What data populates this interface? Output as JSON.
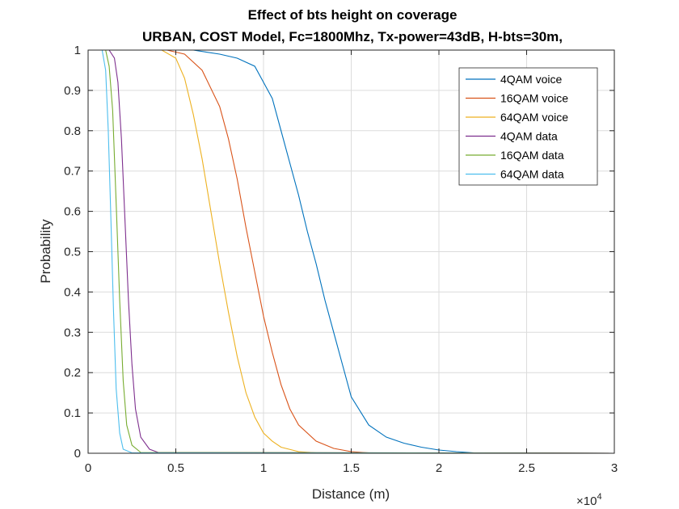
{
  "chart_data": {
    "type": "line",
    "title": "Effect of bts height on coverage",
    "subtitle": "URBAN, COST Model, Fc=1800Mhz, Tx-power=43dB, H-bts=30m,",
    "xlabel": "Distance (m)",
    "ylabel": "Probability",
    "x_exponent_label": "×10",
    "x_exponent_power": "4",
    "xlim": [
      0,
      30000
    ],
    "ylim": [
      0,
      1
    ],
    "x_ticks": [
      0,
      5000,
      10000,
      15000,
      20000,
      25000,
      30000
    ],
    "x_tick_labels": [
      "0",
      "0.5",
      "1",
      "1.5",
      "2",
      "2.5",
      "3"
    ],
    "y_ticks": [
      0,
      0.1,
      0.2,
      0.3,
      0.4,
      0.5,
      0.6,
      0.7,
      0.8,
      0.9,
      1
    ],
    "y_tick_labels": [
      "0",
      "0.1",
      "0.2",
      "0.3",
      "0.4",
      "0.5",
      "0.6",
      "0.7",
      "0.8",
      "0.9",
      "1"
    ],
    "grid": true,
    "legend_position": "top-right",
    "series": [
      {
        "name": "4QAM voice",
        "color": "#0072BD",
        "x": [
          0,
          6000,
          7500,
          8500,
          9500,
          10000,
          10500,
          11000,
          11500,
          12000,
          12500,
          13000,
          13500,
          14000,
          14500,
          15000,
          16000,
          17000,
          18000,
          19000,
          20000,
          21000,
          22000,
          30000
        ],
        "y": [
          1,
          1,
          0.99,
          0.98,
          0.96,
          0.92,
          0.88,
          0.8,
          0.72,
          0.64,
          0.55,
          0.47,
          0.38,
          0.3,
          0.22,
          0.14,
          0.07,
          0.04,
          0.025,
          0.015,
          0.008,
          0.004,
          0.001,
          0
        ]
      },
      {
        "name": "16QAM voice",
        "color": "#D95319",
        "x": [
          0,
          4500,
          5500,
          6500,
          7500,
          8000,
          8500,
          9000,
          9500,
          10000,
          10500,
          11000,
          11500,
          12000,
          13000,
          14000,
          15000,
          16000,
          30000
        ],
        "y": [
          1,
          1,
          0.99,
          0.95,
          0.86,
          0.78,
          0.68,
          0.56,
          0.45,
          0.34,
          0.25,
          0.17,
          0.11,
          0.07,
          0.03,
          0.012,
          0.004,
          0.001,
          0
        ]
      },
      {
        "name": "64QAM voice",
        "color": "#EDB120",
        "x": [
          0,
          4200,
          5000,
          5500,
          6000,
          6500,
          7000,
          7500,
          8000,
          8500,
          9000,
          9500,
          10000,
          10500,
          11000,
          12000,
          13000,
          30000
        ],
        "y": [
          1,
          1,
          0.98,
          0.93,
          0.84,
          0.73,
          0.6,
          0.47,
          0.35,
          0.24,
          0.15,
          0.09,
          0.05,
          0.03,
          0.015,
          0.004,
          0.001,
          0
        ]
      },
      {
        "name": "4QAM data",
        "color": "#7E2F8E",
        "x": [
          0,
          1200,
          1500,
          1700,
          1900,
          2100,
          2300,
          2500,
          2700,
          3000,
          3500,
          4000,
          30000
        ],
        "y": [
          1,
          1,
          0.98,
          0.92,
          0.78,
          0.58,
          0.38,
          0.22,
          0.11,
          0.04,
          0.01,
          0.002,
          0
        ]
      },
      {
        "name": "16QAM data",
        "color": "#77AC30",
        "x": [
          0,
          1000,
          1200,
          1400,
          1600,
          1800,
          2000,
          2200,
          2500,
          3000,
          30000
        ],
        "y": [
          1,
          1,
          0.96,
          0.85,
          0.62,
          0.38,
          0.18,
          0.07,
          0.02,
          0.002,
          0
        ]
      },
      {
        "name": "64QAM data",
        "color": "#4DBEEE",
        "x": [
          0,
          800,
          1000,
          1150,
          1300,
          1450,
          1600,
          1800,
          2000,
          2500,
          30000
        ],
        "y": [
          1,
          1,
          0.95,
          0.8,
          0.58,
          0.35,
          0.16,
          0.05,
          0.01,
          0.001,
          0
        ]
      }
    ]
  }
}
